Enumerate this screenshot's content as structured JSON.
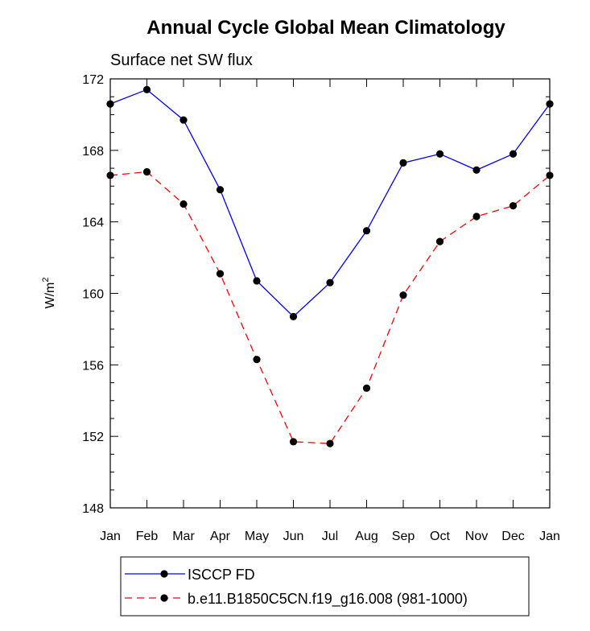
{
  "chart_data": {
    "type": "line",
    "title": "Annual Cycle Global Mean Climatology",
    "subtitle": "Surface net SW flux",
    "ylabel": "W/m",
    "ylabel_sup": "2",
    "xlabel": "",
    "categories": [
      "Jan",
      "Feb",
      "Mar",
      "Apr",
      "May",
      "Jun",
      "Jul",
      "Aug",
      "Sep",
      "Oct",
      "Nov",
      "Dec",
      "Jan"
    ],
    "ylim": [
      148,
      172
    ],
    "yticks": [
      "148",
      "152",
      "156",
      "160",
      "164",
      "168",
      "172"
    ],
    "grid": false,
    "legend_position": "bottom",
    "series": [
      {
        "name": "ISCCP FD",
        "color": "#0000ff",
        "dash": "solid",
        "marker": "circle",
        "values": [
          170.6,
          171.4,
          169.7,
          165.8,
          160.7,
          158.7,
          160.6,
          163.5,
          167.3,
          167.8,
          166.9,
          167.8,
          170.6
        ]
      },
      {
        "name": "b.e11.B1850C5CN.f19_g16.008 (981-1000)",
        "color": "#ff0000",
        "dash": "dashed",
        "marker": "circle",
        "values": [
          166.6,
          166.8,
          165.0,
          161.1,
          156.3,
          151.7,
          151.6,
          154.7,
          159.9,
          162.9,
          164.3,
          164.9,
          166.6
        ]
      }
    ]
  }
}
